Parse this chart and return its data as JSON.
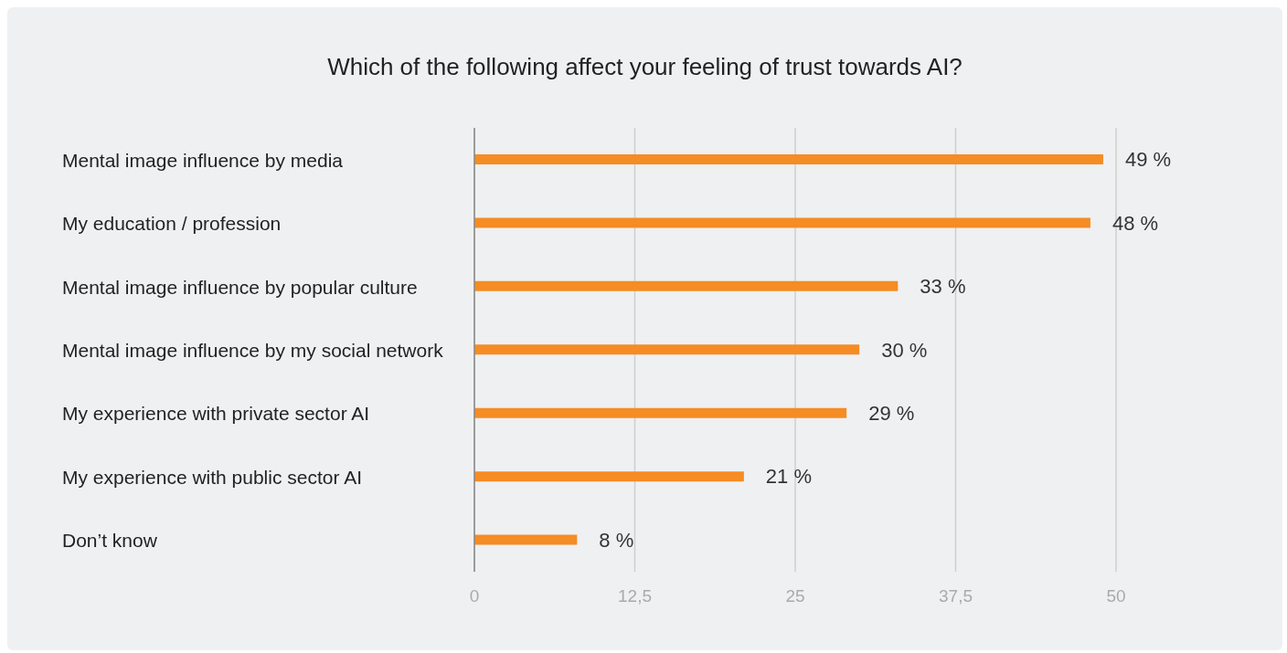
{
  "chart_data": {
    "type": "bar",
    "orientation": "horizontal",
    "title": "Which of the following affect your feeling of trust towards AI?",
    "categories": [
      "Mental image influence by media",
      "My education / profession",
      "Mental image influence by popular culture",
      "Mental image influence by my social network",
      "My experience with private sector AI",
      "My experience with public sector AI",
      "Don’t know"
    ],
    "values": [
      49,
      48,
      33,
      30,
      29,
      21,
      8
    ],
    "value_labels": [
      "49 %",
      "48 %",
      "33 %",
      "30 %",
      "29 %",
      "21 %",
      "8 %"
    ],
    "color": "#f58c24",
    "xlim": [
      0,
      50
    ],
    "xticks": [
      0,
      {
        "value": 12.5,
        "label": "12,5"
      },
      25,
      {
        "value": 37.5,
        "label": "37,5"
      },
      50
    ],
    "grid": "x"
  }
}
